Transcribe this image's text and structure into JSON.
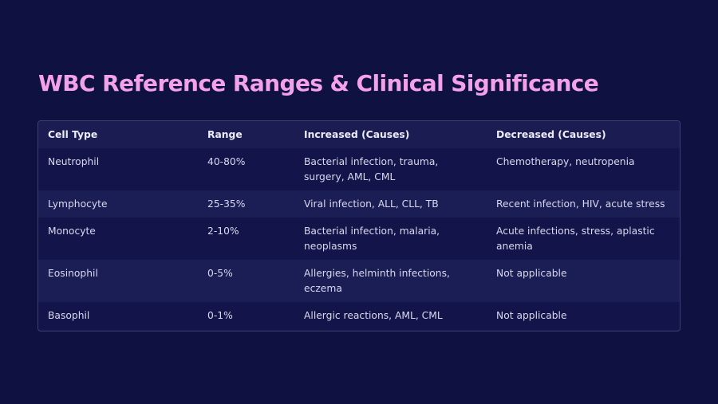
{
  "title": "WBC Reference Ranges & Clinical Significance",
  "colors": {
    "background": "#0f1140",
    "title": "#f2a1ea",
    "table_border": "#3b3f73"
  },
  "table": {
    "headers": [
      "Cell Type",
      "Range",
      "Increased (Causes)",
      "Decreased (Causes)"
    ],
    "rows": [
      [
        "Neutrophil",
        "40-80%",
        "Bacterial infection, trauma, surgery, AML, CML",
        "Chemotherapy, neutropenia"
      ],
      [
        "Lymphocyte",
        "25-35%",
        "Viral infection, ALL, CLL, TB",
        "Recent infection, HIV, acute stress"
      ],
      [
        "Monocyte",
        "2-10%",
        "Bacterial infection, malaria, neoplasms",
        "Acute infections, stress, aplastic anemia"
      ],
      [
        "Eosinophil",
        "0-5%",
        "Allergies, helminth infections, eczema",
        "Not applicable"
      ],
      [
        "Basophil",
        "0-1%",
        "Allergic reactions, AML, CML",
        "Not applicable"
      ]
    ]
  }
}
